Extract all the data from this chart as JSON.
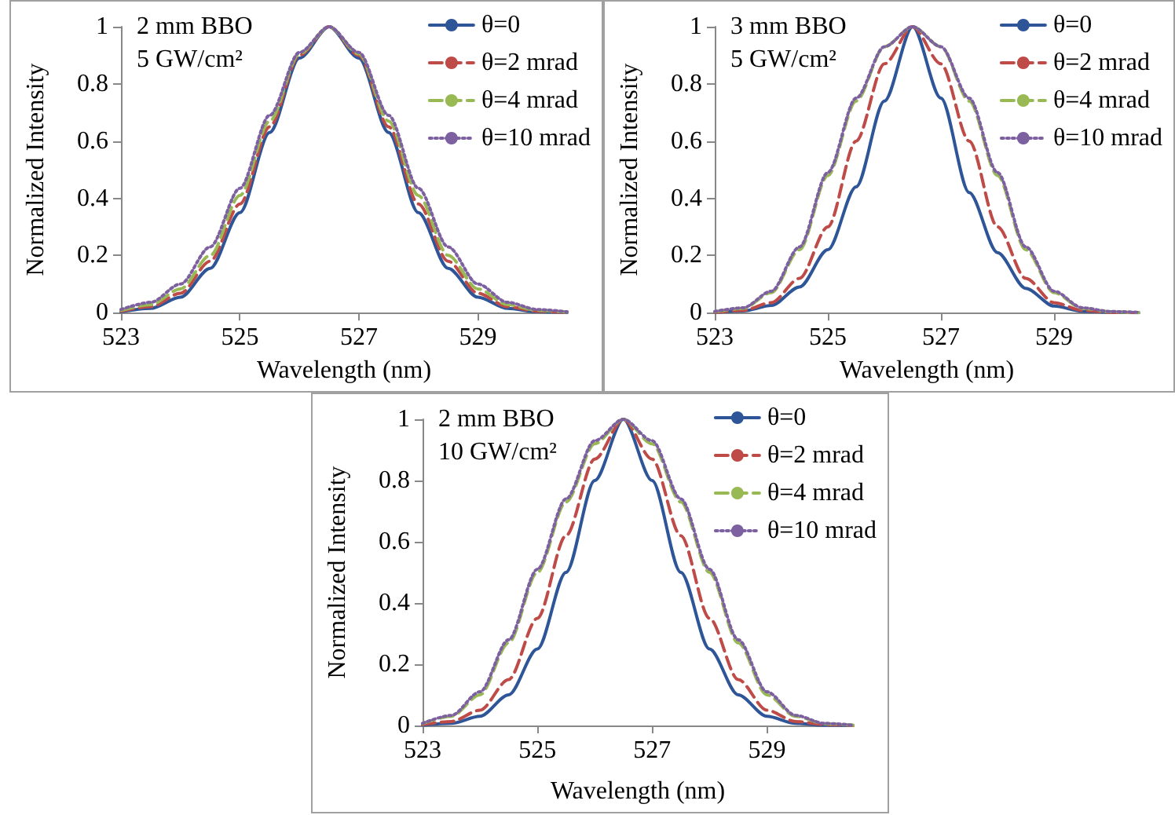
{
  "chart_data": [
    {
      "type": "line",
      "xlabel": "Wavelength (nm)",
      "ylabel": "Normalized Intensity",
      "annotations": [
        "2 mm BBO",
        "5 GW/cm²"
      ],
      "x": [
        523,
        523.5,
        524,
        524.5,
        525,
        525.5,
        526,
        526.5,
        527,
        527.5,
        528,
        528.5,
        529,
        529.5,
        530,
        530.5
      ],
      "xlim": [
        523,
        530.5
      ],
      "xticks": [
        523,
        525,
        527,
        529
      ],
      "ylim": [
        0,
        1
      ],
      "yticks": [
        0,
        0.2,
        0.4,
        0.6,
        0.8,
        1
      ],
      "grid": false,
      "legend": "top right",
      "marker": "none",
      "series": [
        {
          "name": "θ=0",
          "color": "#2e5597",
          "line_style": "solid",
          "values": [
            0.003,
            0.015,
            0.054,
            0.155,
            0.35,
            0.63,
            0.89,
            1,
            0.89,
            0.63,
            0.35,
            0.155,
            0.054,
            0.015,
            0.003,
            0
          ]
        },
        {
          "name": "θ=2 mrad",
          "color": "#be4b48",
          "line_style": "dashed",
          "values": [
            0.005,
            0.021,
            0.068,
            0.18,
            0.38,
            0.65,
            0.9,
            1,
            0.9,
            0.65,
            0.38,
            0.18,
            0.068,
            0.021,
            0.005,
            0.001
          ]
        },
        {
          "name": "θ=4 mrad",
          "color": "#98b954",
          "line_style": "dashed",
          "values": [
            0.008,
            0.028,
            0.083,
            0.2,
            0.41,
            0.67,
            0.905,
            1,
            0.905,
            0.67,
            0.41,
            0.2,
            0.083,
            0.028,
            0.008,
            0.002
          ]
        },
        {
          "name": "θ=10 mrad",
          "color": "#7d60a0",
          "line_style": "dotted",
          "values": [
            0.011,
            0.036,
            0.1,
            0.23,
            0.435,
            0.69,
            0.91,
            1,
            0.91,
            0.69,
            0.435,
            0.23,
            0.1,
            0.036,
            0.011,
            0.003
          ]
        }
      ]
    },
    {
      "type": "line",
      "xlabel": "Wavelength (nm)",
      "ylabel": "Normalized Intensity",
      "annotations": [
        "3 mm BBO",
        "5 GW/cm²"
      ],
      "x": [
        523,
        523.5,
        524,
        524.5,
        525,
        525.5,
        526,
        526.5,
        527,
        527.5,
        528,
        528.5,
        529,
        529.5,
        530,
        530.5
      ],
      "xlim": [
        523,
        530.5
      ],
      "xticks": [
        523,
        525,
        527,
        529
      ],
      "ylim": [
        0,
        1
      ],
      "yticks": [
        0,
        0.2,
        0.4,
        0.6,
        0.8,
        1
      ],
      "grid": false,
      "legend": "top right",
      "marker": "none",
      "series": [
        {
          "name": "θ=0",
          "color": "#2e5597",
          "line_style": "solid",
          "values": [
            0.001,
            0.006,
            0.025,
            0.09,
            0.22,
            0.44,
            0.74,
            1,
            0.75,
            0.42,
            0.21,
            0.085,
            0.023,
            0.005,
            0.001,
            0
          ]
        },
        {
          "name": "θ=2 mrad",
          "color": "#be4b48",
          "line_style": "dashed",
          "values": [
            0.001,
            0.008,
            0.035,
            0.12,
            0.3,
            0.6,
            0.87,
            1,
            0.87,
            0.6,
            0.3,
            0.12,
            0.035,
            0.008,
            0.001,
            0
          ]
        },
        {
          "name": "θ=4 mrad",
          "color": "#98b954",
          "line_style": "dashed",
          "values": [
            0.003,
            0.015,
            0.07,
            0.22,
            0.48,
            0.74,
            0.93,
            1,
            0.93,
            0.74,
            0.48,
            0.22,
            0.07,
            0.015,
            0.003,
            0
          ]
        },
        {
          "name": "θ=10 mrad",
          "color": "#7d60a0",
          "line_style": "dotted",
          "values": [
            0.004,
            0.017,
            0.075,
            0.23,
            0.49,
            0.75,
            0.93,
            1,
            0.93,
            0.75,
            0.49,
            0.23,
            0.075,
            0.017,
            0.004,
            0.001
          ]
        }
      ]
    },
    {
      "type": "line",
      "xlabel": "Wavelength (nm)",
      "ylabel": "Normalized Intensity",
      "annotations": [
        "2 mm BBO",
        "10 GW/cm²"
      ],
      "x": [
        523,
        523.5,
        524,
        524.5,
        525,
        525.5,
        526,
        526.5,
        527,
        527.5,
        528,
        528.5,
        529,
        529.5,
        530,
        530.5
      ],
      "xlim": [
        523,
        530.5
      ],
      "xticks": [
        523,
        525,
        527,
        529
      ],
      "ylim": [
        0,
        1
      ],
      "yticks": [
        0,
        0.2,
        0.4,
        0.6,
        0.8,
        1
      ],
      "grid": false,
      "legend": "top right",
      "marker": "none",
      "series": [
        {
          "name": "θ=0",
          "color": "#2e5597",
          "line_style": "solid",
          "values": [
            0.001,
            0.007,
            0.03,
            0.1,
            0.25,
            0.5,
            0.8,
            1,
            0.8,
            0.5,
            0.25,
            0.1,
            0.03,
            0.007,
            0.001,
            0
          ]
        },
        {
          "name": "θ=2 mrad",
          "color": "#be4b48",
          "line_style": "dashed",
          "values": [
            0.003,
            0.013,
            0.05,
            0.15,
            0.35,
            0.62,
            0.87,
            1,
            0.87,
            0.62,
            0.35,
            0.15,
            0.05,
            0.013,
            0.003,
            0
          ]
        },
        {
          "name": "θ=4 mrad",
          "color": "#98b954",
          "line_style": "dashed",
          "values": [
            0.006,
            0.03,
            0.1,
            0.27,
            0.5,
            0.73,
            0.92,
            1,
            0.92,
            0.73,
            0.5,
            0.27,
            0.1,
            0.03,
            0.006,
            0.001
          ]
        },
        {
          "name": "θ=10 mrad",
          "color": "#7d60a0",
          "line_style": "dotted",
          "values": [
            0.007,
            0.033,
            0.11,
            0.28,
            0.51,
            0.74,
            0.93,
            1,
            0.93,
            0.74,
            0.51,
            0.28,
            0.11,
            0.033,
            0.007,
            0.001
          ]
        }
      ]
    }
  ]
}
